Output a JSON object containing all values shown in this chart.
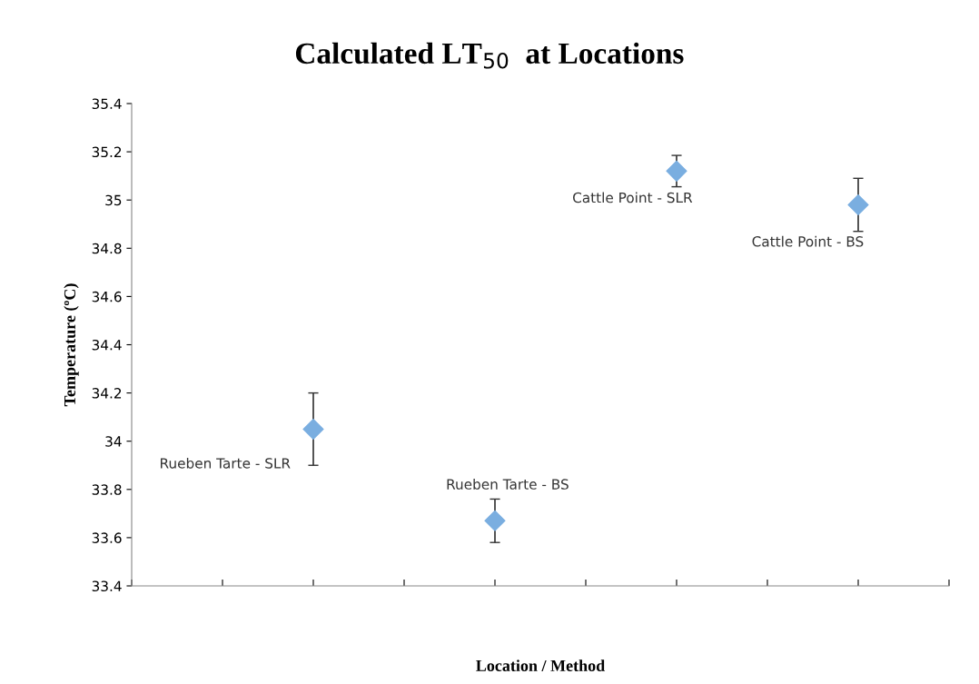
{
  "chart_data": {
    "type": "scatter",
    "title": "Calculated LT$_{50}$  at Locations",
    "xlabel": "Location / Method",
    "ylabel": "Temperature (ºC)",
    "categories": [
      null,
      null,
      null,
      null
    ],
    "values": [
      34.05,
      33.67,
      35.12,
      34.98
    ],
    "errors": [
      0.15,
      0.09,
      0.065,
      0.11
    ],
    "color": "#7aaee0",
    "marker": "diamond",
    "ylim": [
      33.4,
      35.4
    ],
    "yticks": [
      33.4,
      33.6,
      33.8,
      34,
      34.2,
      34.4,
      34.6,
      34.8,
      35,
      35.2,
      35.4
    ],
    "grid": false,
    "legend": false,
    "annotations": [
      "Rueben Tarte - SLR",
      "Rueben Tarte - BS",
      "Cattle Point - SLR",
      "Cattle Point - BS"
    ]
  }
}
